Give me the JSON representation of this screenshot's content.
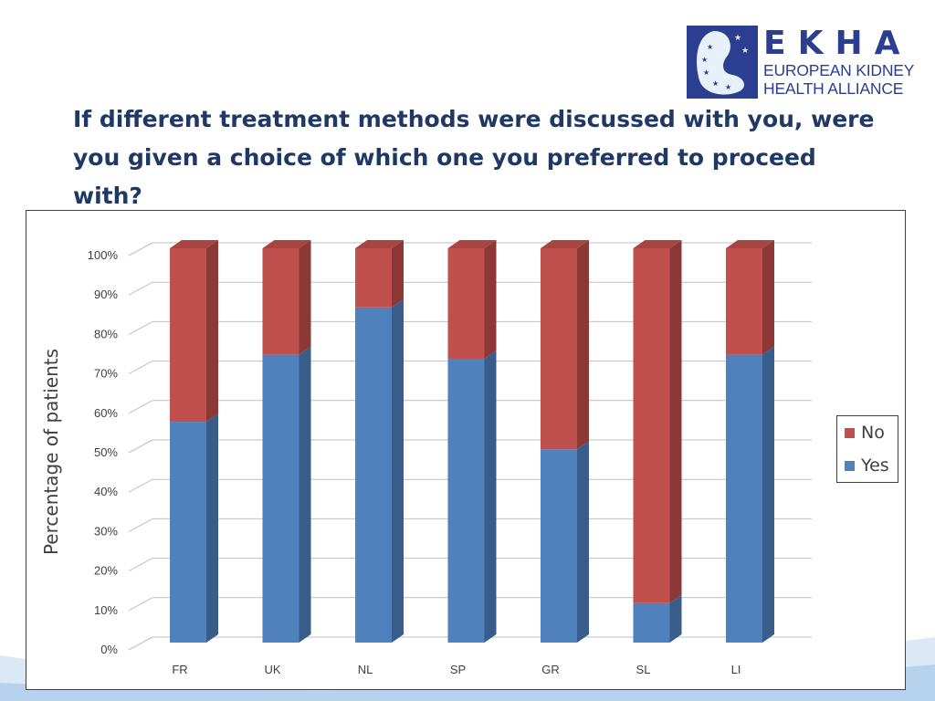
{
  "logo": {
    "letters": "EKHA",
    "line1": "EUROPEAN KIDNEY",
    "line2": "HEALTH ALLIANCE"
  },
  "title": "If different treatment methods were discussed with you, were you given a choice of which one you preferred to proceed with?",
  "colors": {
    "title": "#1f3864",
    "yes_front": "#4f81bd",
    "yes_side": "#385d8a",
    "no_front": "#c0504d",
    "no_side": "#8c3836",
    "logo_blue": "#2b3e8f"
  },
  "chart_data": {
    "type": "bar",
    "stacked": true,
    "percent_stacked": true,
    "style": "3d-column",
    "categories": [
      "FR",
      "UK",
      "NL",
      "SP",
      "GR",
      "SL",
      "LI"
    ],
    "series": [
      {
        "name": "Yes",
        "values": [
          56,
          73,
          85,
          72,
          49,
          10,
          73
        ]
      },
      {
        "name": "No",
        "values": [
          44,
          27,
          15,
          28,
          51,
          90,
          27
        ]
      }
    ],
    "ylabel": "Percentage of patients",
    "xlabel": "",
    "ylim": [
      0,
      100
    ],
    "yticks": [
      "0%",
      "10%",
      "20%",
      "30%",
      "40%",
      "50%",
      "60%",
      "70%",
      "80%",
      "90%",
      "100%"
    ],
    "grid": true,
    "legend_position": "right",
    "legend": [
      "No",
      "Yes"
    ]
  }
}
